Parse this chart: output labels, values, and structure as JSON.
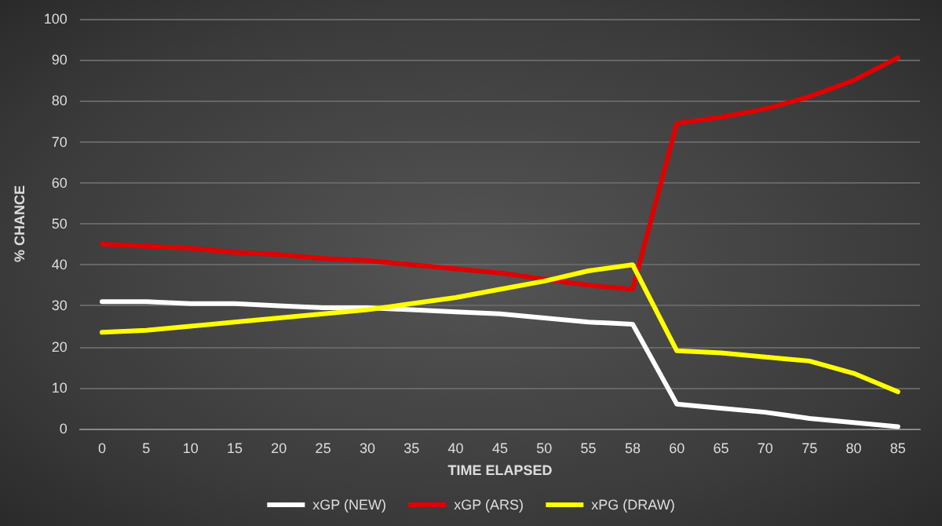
{
  "chart_data": {
    "type": "line",
    "xlabel": "TIME ELAPSED",
    "ylabel": "% CHANCE",
    "categories": [
      "0",
      "5",
      "10",
      "15",
      "20",
      "25",
      "30",
      "35",
      "40",
      "45",
      "50",
      "55",
      "58",
      "60",
      "65",
      "70",
      "75",
      "80",
      "85"
    ],
    "series": [
      {
        "name": "xGP (NEW)",
        "color": "#ffffff",
        "values": [
          31,
          31,
          30.5,
          30.5,
          30,
          29.5,
          29.5,
          29,
          28.5,
          28,
          27,
          26,
          25.5,
          6,
          5,
          4,
          2.5,
          1.5,
          0.5
        ]
      },
      {
        "name": "xGP (ARS)",
        "color": "#e00000",
        "values": [
          45,
          44.5,
          44,
          43,
          42.5,
          41.5,
          41,
          40,
          39,
          38,
          36.5,
          35,
          34,
          74.5,
          76,
          78,
          81,
          85,
          90.5
        ]
      },
      {
        "name": "xPG (DRAW)",
        "color": "#ffff00",
        "values": [
          23.5,
          24,
          25,
          26,
          27,
          28,
          29,
          30.5,
          32,
          34,
          36,
          38.5,
          40,
          19,
          18.5,
          17.5,
          16.5,
          13.5,
          9
        ]
      }
    ],
    "ylim": [
      0,
      100
    ],
    "yticks": [
      0,
      10,
      20,
      30,
      40,
      50,
      60,
      70,
      80,
      90,
      100
    ],
    "grid": "y",
    "legend": "bottom",
    "marker": "none",
    "line_style": "solid"
  }
}
